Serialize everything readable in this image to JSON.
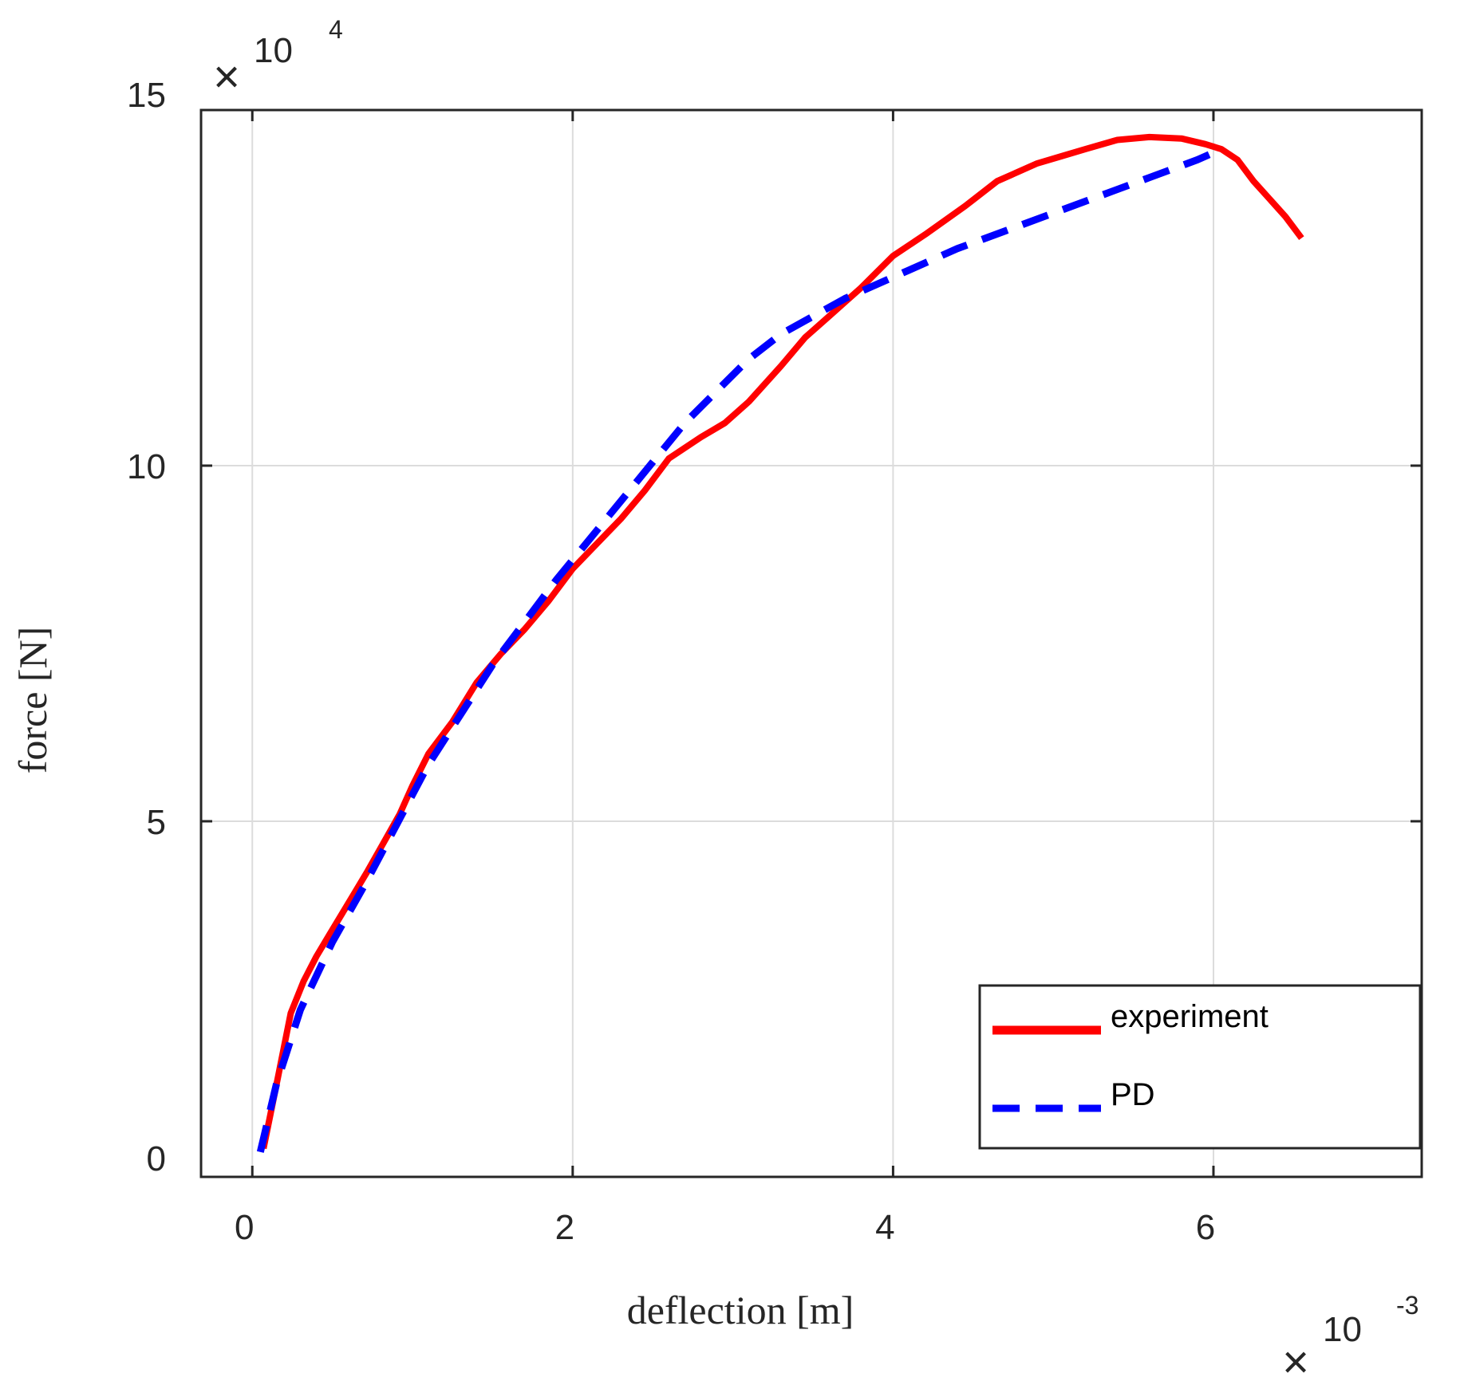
{
  "chart_data": {
    "type": "line",
    "title": "",
    "xlabel": "deflection [m]",
    "ylabel": "force [N]",
    "x_exponent_label": {
      "base": "10",
      "power": "-3"
    },
    "y_exponent_label": {
      "base": "10",
      "power": "4"
    },
    "xlim": [
      -0.32,
      7.3
    ],
    "ylim": [
      0,
      15
    ],
    "x_ticks": [
      0,
      2,
      4,
      6
    ],
    "x_tick_labels": [
      "0",
      "2",
      "4",
      "6"
    ],
    "y_ticks": [
      0,
      5,
      10,
      15
    ],
    "y_tick_labels": [
      "0",
      "5",
      "10",
      "15"
    ],
    "grid": true,
    "legend_position": "bottom-right",
    "series": [
      {
        "name": "experiment",
        "color": "#ff0000",
        "style": "solid",
        "x": [
          0.07,
          0.16,
          0.24,
          0.32,
          0.4,
          0.48,
          0.56,
          0.64,
          0.72,
          0.82,
          0.92,
          1.0,
          1.1,
          1.25,
          1.4,
          1.55,
          1.7,
          1.85,
          2.0,
          2.15,
          2.3,
          2.45,
          2.6,
          2.8,
          2.95,
          3.1,
          3.3,
          3.45,
          3.6,
          3.8,
          4.0,
          4.2,
          4.45,
          4.65,
          4.9,
          5.05,
          5.2,
          5.4,
          5.6,
          5.8,
          5.95,
          6.05,
          6.15,
          6.25,
          6.35,
          6.45,
          6.55
        ],
        "y": [
          0.4,
          1.4,
          2.3,
          2.75,
          3.1,
          3.4,
          3.7,
          4.0,
          4.3,
          4.7,
          5.1,
          5.5,
          5.95,
          6.4,
          6.95,
          7.35,
          7.7,
          8.1,
          8.55,
          8.9,
          9.25,
          9.65,
          10.1,
          10.4,
          10.6,
          10.9,
          11.4,
          11.8,
          12.1,
          12.5,
          12.95,
          13.25,
          13.65,
          14.0,
          14.25,
          14.35,
          14.45,
          14.58,
          14.62,
          14.6,
          14.52,
          14.45,
          14.3,
          14.0,
          13.75,
          13.5,
          13.2
        ]
      },
      {
        "name": "PD",
        "color": "#0000ff",
        "style": "dashed",
        "x": [
          0.05,
          0.15,
          0.3,
          0.5,
          0.7,
          0.9,
          1.1,
          1.3,
          1.5,
          1.7,
          1.9,
          2.1,
          2.3,
          2.5,
          2.7,
          2.9,
          3.1,
          3.3,
          3.5,
          3.7,
          3.9,
          4.1,
          4.4,
          4.7,
          5.0,
          5.3,
          5.6,
          5.9,
          6.0
        ],
        "y": [
          0.35,
          1.3,
          2.35,
          3.3,
          4.1,
          4.95,
          5.8,
          6.5,
          7.2,
          7.8,
          8.4,
          8.95,
          9.5,
          10.05,
          10.6,
          11.05,
          11.5,
          11.85,
          12.1,
          12.35,
          12.55,
          12.75,
          13.05,
          13.3,
          13.55,
          13.8,
          14.05,
          14.3,
          14.4
        ]
      }
    ]
  }
}
